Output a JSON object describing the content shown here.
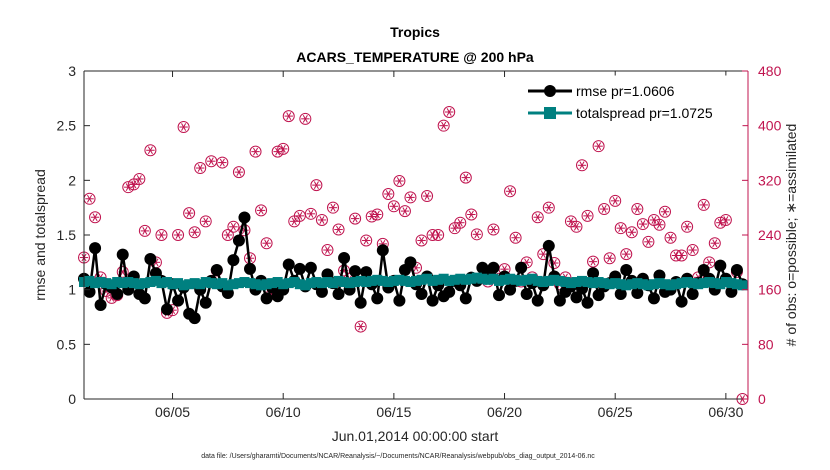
{
  "colors": {
    "rmse": "#000000",
    "spread": "#008080",
    "obs": "#C0144F",
    "axis": "#262626",
    "legend_border": "#ffffff"
  },
  "footnote": "data file: /Users/gharamti/Documents/NCAR/Reanalysis/~/Documents/NCAR/Reanalysis/webpub/obs_diag_output_2014-06.nc",
  "chart_data": {
    "type": "line",
    "title": "Tropics",
    "subtitle": "ACARS_TEMPERATURE @ 200 hPa",
    "xlabel": "Jun.01,2014 00:00:00 start",
    "ylabel": "rmse and totalspread",
    "ylabel_right": "# of obs: o=possible; ∗=assimilated",
    "xlim": [
      1.0,
      31.0
    ],
    "ylim": [
      0,
      3
    ],
    "ylim_right": [
      0,
      480
    ],
    "xticks": [
      5,
      10,
      15,
      20,
      25,
      30
    ],
    "xtick_labels": [
      "06/05",
      "06/10",
      "06/15",
      "06/20",
      "06/25",
      "06/30"
    ],
    "yticks": [
      0,
      0.5,
      1,
      1.5,
      2,
      2.5,
      3
    ],
    "ytick_labels": [
      "0",
      "0.5",
      "1",
      "1.5",
      "2",
      "2.5",
      "3"
    ],
    "yticks_right": [
      0,
      80,
      160,
      240,
      320,
      400,
      480
    ],
    "ytick_labels_right": [
      "0",
      "80",
      "160",
      "240",
      "320",
      "400",
      "480"
    ],
    "legend": [
      "rmse pr=1.0606",
      "totalspread pr=1.0725"
    ],
    "legend_position": "top-right",
    "series": [
      {
        "name": "rmse pr=1.0606",
        "x": [
          1.0,
          1.25,
          1.5,
          1.75,
          2.0,
          2.25,
          2.5,
          2.75,
          3.0,
          3.25,
          3.5,
          3.75,
          4.0,
          4.25,
          4.5,
          4.75,
          5.0,
          5.25,
          5.5,
          5.75,
          6.0,
          6.25,
          6.5,
          6.75,
          7.0,
          7.25,
          7.5,
          7.75,
          8.0,
          8.25,
          8.5,
          8.75,
          9.0,
          9.25,
          9.5,
          9.75,
          10.0,
          10.25,
          10.5,
          10.75,
          11.0,
          11.25,
          11.5,
          11.75,
          12.0,
          12.25,
          12.5,
          12.75,
          13.0,
          13.25,
          13.5,
          13.75,
          14.0,
          14.25,
          14.5,
          14.75,
          15.0,
          15.25,
          15.5,
          15.75,
          16.0,
          16.25,
          16.5,
          16.75,
          17.0,
          17.25,
          17.5,
          17.75,
          18.0,
          18.25,
          18.5,
          18.75,
          19.0,
          19.25,
          19.5,
          19.75,
          20.0,
          20.25,
          20.5,
          20.75,
          21.0,
          21.25,
          21.5,
          21.75,
          22.0,
          22.25,
          22.5,
          22.75,
          23.0,
          23.25,
          23.5,
          23.75,
          24.0,
          24.25,
          24.5,
          24.75,
          25.0,
          25.25,
          25.5,
          25.75,
          26.0,
          26.25,
          26.5,
          26.75,
          27.0,
          27.25,
          27.5,
          27.75,
          28.0,
          28.25,
          28.5,
          28.75,
          29.0,
          29.25,
          29.5,
          29.75,
          30.0,
          30.25,
          30.5,
          30.75
        ],
        "values": [
          1.1,
          0.98,
          1.38,
          0.86,
          1.05,
          1.02,
          0.96,
          1.32,
          1.0,
          1.12,
          0.96,
          0.92,
          1.28,
          1.15,
          1.08,
          0.82,
          1.05,
          0.9,
          1.02,
          0.78,
          0.74,
          1.0,
          0.88,
          1.08,
          1.18,
          1.03,
          0.97,
          1.27,
          1.45,
          1.66,
          1.19,
          1.0,
          1.08,
          0.92,
          1.02,
          0.94,
          1.0,
          1.23,
          1.08,
          1.19,
          1.03,
          1.2,
          1.05,
          0.98,
          1.14,
          1.06,
          0.96,
          1.29,
          1.0,
          1.17,
          0.88,
          1.16,
          1.05,
          0.92,
          1.36,
          1.02,
          1.08,
          0.9,
          1.18,
          1.25,
          1.05,
          0.96,
          1.12,
          0.9,
          1.04,
          0.94,
          0.98,
          1.08,
          1.04,
          0.92,
          1.11,
          1.08,
          1.2,
          1.15,
          1.2,
          0.95,
          1.12,
          1.0,
          1.08,
          1.2,
          0.96,
          1.06,
          0.9,
          1.04,
          1.4,
          1.12,
          0.9,
          0.98,
          1.03,
          0.93,
          1.01,
          0.88,
          1.15,
          0.95,
          1.03,
          1.06,
          1.12,
          0.96,
          1.18,
          1.08,
          0.97,
          1.1,
          1.04,
          0.92,
          1.13,
          0.98,
          1.0,
          1.07,
          0.89,
          1.1,
          0.96,
          1.06,
          1.18,
          1.1,
          1.0,
          1.22,
          1.1,
          0.98,
          1.18,
          1.05
        ]
      },
      {
        "name": "totalspread pr=1.0725",
        "x": [
          1.0,
          1.25,
          1.5,
          1.75,
          2.0,
          2.25,
          2.5,
          2.75,
          3.0,
          3.25,
          3.5,
          3.75,
          4.0,
          4.25,
          4.5,
          4.75,
          5.0,
          5.25,
          5.5,
          5.75,
          6.0,
          6.25,
          6.5,
          6.75,
          7.0,
          7.25,
          7.5,
          7.75,
          8.0,
          8.25,
          8.5,
          8.75,
          9.0,
          9.25,
          9.5,
          9.75,
          10.0,
          10.25,
          10.5,
          10.75,
          11.0,
          11.25,
          11.5,
          11.75,
          12.0,
          12.25,
          12.5,
          12.75,
          13.0,
          13.25,
          13.5,
          13.75,
          14.0,
          14.25,
          14.5,
          14.75,
          15.0,
          15.25,
          15.5,
          15.75,
          16.0,
          16.25,
          16.5,
          16.75,
          17.0,
          17.25,
          17.5,
          17.75,
          18.0,
          18.25,
          18.5,
          18.75,
          19.0,
          19.25,
          19.5,
          19.75,
          20.0,
          20.25,
          20.5,
          20.75,
          21.0,
          21.25,
          21.5,
          21.75,
          22.0,
          22.25,
          22.5,
          22.75,
          23.0,
          23.25,
          23.5,
          23.75,
          24.0,
          24.25,
          24.5,
          24.75,
          25.0,
          25.25,
          25.5,
          25.75,
          26.0,
          26.25,
          26.5,
          26.75,
          27.0,
          27.25,
          27.5,
          27.75,
          28.0,
          28.25,
          28.5,
          28.75,
          29.0,
          29.25,
          29.5,
          29.75,
          30.0,
          30.25,
          30.5,
          30.75
        ],
        "values": [
          1.07,
          1.08,
          1.06,
          1.07,
          1.06,
          1.05,
          1.07,
          1.06,
          1.07,
          1.06,
          1.05,
          1.06,
          1.07,
          1.08,
          1.06,
          1.07,
          1.05,
          1.06,
          1.04,
          1.05,
          1.06,
          1.05,
          1.07,
          1.06,
          1.05,
          1.06,
          1.04,
          1.05,
          1.06,
          1.07,
          1.06,
          1.05,
          1.04,
          1.05,
          1.06,
          1.07,
          1.05,
          1.06,
          1.07,
          1.05,
          1.04,
          1.06,
          1.07,
          1.06,
          1.07,
          1.06,
          1.08,
          1.07,
          1.06,
          1.07,
          1.08,
          1.07,
          1.08,
          1.09,
          1.08,
          1.07,
          1.08,
          1.09,
          1.08,
          1.07,
          1.08,
          1.09,
          1.1,
          1.08,
          1.09,
          1.1,
          1.08,
          1.09,
          1.1,
          1.09,
          1.1,
          1.11,
          1.1,
          1.09,
          1.1,
          1.08,
          1.09,
          1.1,
          1.09,
          1.08,
          1.09,
          1.1,
          1.08,
          1.07,
          1.08,
          1.09,
          1.08,
          1.07,
          1.06,
          1.07,
          1.08,
          1.07,
          1.06,
          1.07,
          1.06,
          1.05,
          1.06,
          1.05,
          1.04,
          1.05,
          1.06,
          1.05,
          1.04,
          1.05,
          1.06,
          1.05,
          1.04,
          1.05,
          1.06,
          1.07,
          1.06,
          1.05,
          1.06,
          1.07,
          1.06,
          1.05,
          1.07,
          1.06,
          1.05,
          1.04
        ]
      },
      {
        "name": "obs possible",
        "axis": "right",
        "x": [
          1.0,
          1.25,
          1.5,
          1.75,
          2.0,
          2.25,
          2.5,
          2.75,
          3.0,
          3.25,
          3.5,
          3.75,
          4.0,
          4.25,
          4.5,
          4.75,
          5.0,
          5.25,
          5.5,
          5.75,
          6.0,
          6.25,
          6.5,
          6.75,
          7.0,
          7.25,
          7.5,
          7.75,
          8.0,
          8.25,
          8.5,
          8.75,
          9.0,
          9.25,
          9.5,
          9.75,
          10.0,
          10.25,
          10.5,
          10.75,
          11.0,
          11.25,
          11.5,
          11.75,
          12.0,
          12.25,
          12.5,
          12.75,
          13.0,
          13.25,
          13.5,
          13.75,
          14.0,
          14.25,
          14.5,
          14.75,
          15.0,
          15.25,
          15.5,
          15.75,
          16.0,
          16.25,
          16.5,
          16.75,
          17.0,
          17.25,
          17.5,
          17.75,
          18.0,
          18.25,
          18.5,
          18.75,
          19.0,
          19.25,
          19.5,
          19.75,
          20.0,
          20.25,
          20.5,
          20.75,
          21.0,
          21.25,
          21.5,
          21.75,
          22.0,
          22.25,
          22.5,
          22.75,
          23.0,
          23.25,
          23.5,
          23.75,
          24.0,
          24.25,
          24.5,
          24.75,
          25.0,
          25.25,
          25.5,
          25.75,
          26.0,
          26.25,
          26.5,
          26.75,
          27.0,
          27.25,
          27.5,
          27.75,
          28.0,
          28.25,
          28.5,
          28.75,
          29.0,
          29.25,
          29.5,
          29.75,
          30.0,
          30.25,
          30.5,
          30.75
        ],
        "values": [
          207,
          293,
          266,
          178,
          158,
          148,
          152,
          186,
          310,
          314,
          322,
          246,
          364,
          200,
          240,
          126,
          130,
          240,
          398,
          272,
          244,
          338,
          260,
          348,
          188,
          346,
          240,
          252,
          332,
          247,
          206,
          362,
          276,
          228,
          154,
          362,
          366,
          414,
          260,
          268,
          410,
          271,
          313,
          262,
          218,
          280,
          248,
          188,
          176,
          264,
          106,
          232,
          267,
          270,
          227,
          300,
          282,
          319,
          275,
          295,
          192,
          232,
          297,
          240,
          240,
          400,
          420,
          250,
          258,
          324,
          270,
          241,
          177,
          172,
          248,
          176,
          190,
          304,
          236,
          172,
          200,
          178,
          266,
          212,
          280,
          199,
          168,
          178,
          260,
          252,
          342,
          268,
          201,
          370,
          278,
          206,
          290,
          250,
          212,
          244,
          278,
          256,
          230,
          262,
          255,
          274,
          236,
          210,
          210,
          252,
          218,
          178,
          284,
          200,
          228,
          258,
          262,
          168,
          186,
          0
        ]
      }
    ]
  }
}
